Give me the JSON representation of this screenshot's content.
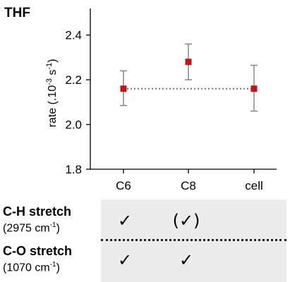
{
  "chart_data": {
    "type": "scatter",
    "title": "THF",
    "ylabel": "rate (.10⁻³ s⁻¹)",
    "ylabel_parts": {
      "prefix": "rate (.10",
      "exp1": "-3",
      "mid": " s",
      "exp2": "-1",
      "suffix": ")"
    },
    "categories": [
      "C6",
      "C8",
      "cell"
    ],
    "values": [
      2.16,
      2.28,
      2.16
    ],
    "error_low": [
      2.085,
      2.2,
      2.06
    ],
    "error_high": [
      2.24,
      2.36,
      2.265
    ],
    "reference_line": 2.16,
    "yticks": [
      "1.8",
      "2.0",
      "2.2",
      "2.4"
    ],
    "ylim": [
      1.8,
      2.5
    ],
    "grid": false,
    "colors": {
      "point": "#c0141c",
      "errorbar": "#7f7f7f",
      "reference_line": "#7f7f7f"
    }
  },
  "table": {
    "rows": [
      {
        "label": "C-H stretch",
        "sub_prefix": "(2975 cm",
        "sub_exp": "-1",
        "sub_suffix": ")",
        "marks": [
          "✓",
          "(✓)",
          ""
        ]
      },
      {
        "label": "C-O stretch",
        "sub_prefix": "(1070 cm",
        "sub_exp": "-1",
        "sub_suffix": ")",
        "marks": [
          "✓",
          "✓",
          ""
        ]
      }
    ]
  }
}
